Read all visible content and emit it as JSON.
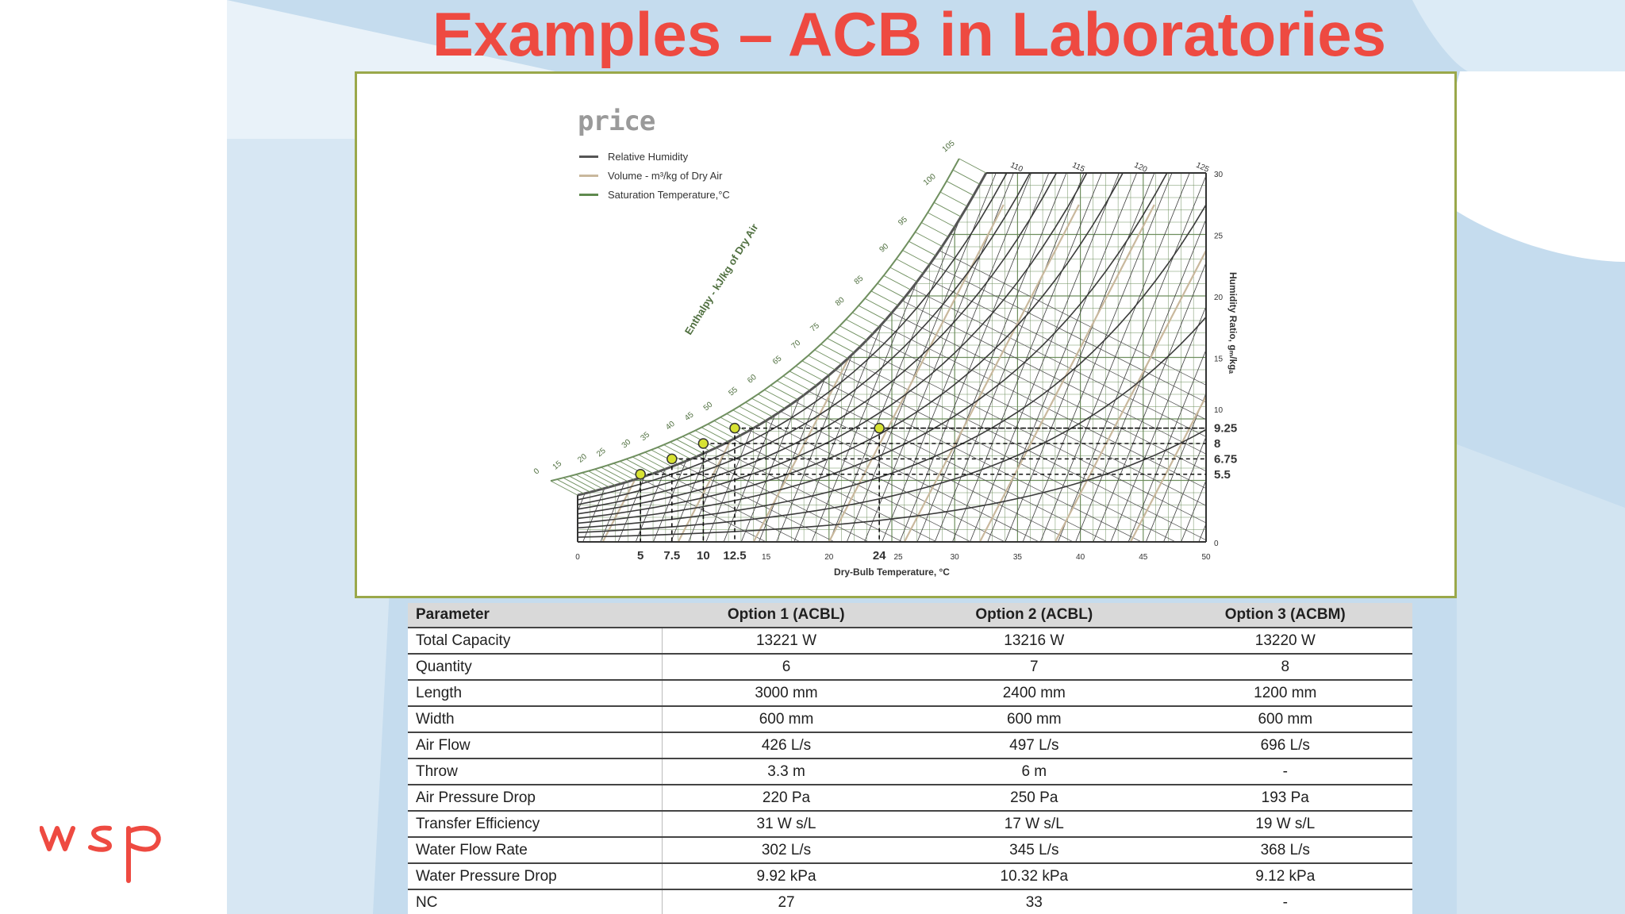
{
  "slide": {
    "title": "Examples – ACB in Laboratories",
    "brand_logo": "wsp",
    "colors": {
      "title": "#ee4a41",
      "background_blue": "#c5dcee",
      "frame_border": "#9aa84a",
      "point_fill": "#d7e233"
    }
  },
  "chart": {
    "logo": "price",
    "legend": [
      {
        "label": "Relative Humidity",
        "color": "#555555"
      },
      {
        "label": "Volume - m³/kg of Dry Air",
        "color": "#c9b89d"
      },
      {
        "label": "Saturation Temperature,°C",
        "color": "#5f8a4e"
      }
    ],
    "enthalpy_axis_label": "Enthalpy - kJ/kg of Dry Air",
    "x_axis_label": "Dry-Bulb Temperature, °C",
    "y_axis_label": "Humidity Ratio, gₘ/kgₐ",
    "x_ticks": [
      "0",
      "5",
      "7.5",
      "10",
      "12.5",
      "15",
      "20",
      "24",
      "25",
      "30",
      "35",
      "40",
      "45",
      "50"
    ],
    "x_ticks_bold": [
      "5",
      "7.5",
      "10",
      "12.5",
      "24"
    ],
    "y_ticks": [
      "0",
      "5.5",
      "6.75",
      "8",
      "9.25",
      "10",
      "15",
      "20",
      "25",
      "30"
    ],
    "y_ticks_bold": [
      "5.5",
      "6.75",
      "8",
      "9.25"
    ],
    "top_ticks": [
      "110",
      "115",
      "120",
      "125"
    ],
    "enthalpy_ticks": [
      "0",
      "15",
      "20",
      "25",
      "30",
      "35",
      "40",
      "45",
      "50",
      "55",
      "60",
      "65",
      "70",
      "75",
      "80",
      "85",
      "90",
      "95",
      "100",
      "105"
    ],
    "marked_points": [
      {
        "db": 5,
        "w": 5.5
      },
      {
        "db": 7.5,
        "w": 6.75
      },
      {
        "db": 10,
        "w": 8
      },
      {
        "db": 12.5,
        "w": 9.25
      },
      {
        "db": 24,
        "w": 9.25
      }
    ]
  },
  "table": {
    "headers": [
      "Parameter",
      "Option 1 (ACBL)",
      "Option 2 (ACBL)",
      "Option 3 (ACBM)"
    ],
    "rows": [
      [
        "Total Capacity",
        "13221 W",
        "13216 W",
        "13220 W"
      ],
      [
        "Quantity",
        "6",
        "7",
        "8"
      ],
      [
        "Length",
        "3000 mm",
        "2400 mm",
        "1200 mm"
      ],
      [
        "Width",
        "600 mm",
        "600 mm",
        "600 mm"
      ],
      [
        "Air Flow",
        "426 L/s",
        "497 L/s",
        "696 L/s"
      ],
      [
        "Throw",
        "3.3 m",
        "6 m",
        "-"
      ],
      [
        "Air Pressure Drop",
        "220 Pa",
        "250 Pa",
        "193 Pa"
      ],
      [
        "Transfer Efficiency",
        "31 W s/L",
        "17 W s/L",
        "19 W s/L"
      ],
      [
        "Water Flow Rate",
        "302 L/s",
        "345 L/s",
        "368 L/s"
      ],
      [
        "Water Pressure Drop",
        "9.92 kPa",
        "10.32 kPa",
        "9.12 kPa"
      ],
      [
        "NC",
        "27",
        "33",
        "-"
      ]
    ]
  }
}
